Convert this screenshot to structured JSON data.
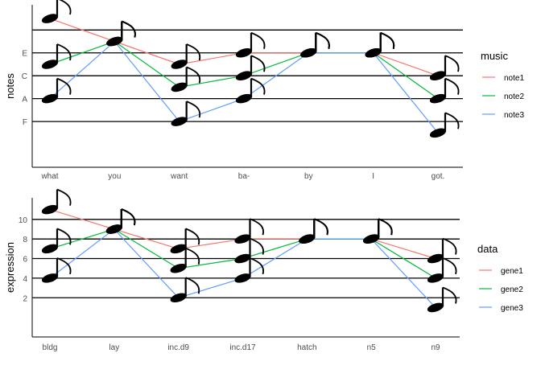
{
  "chart_data": [
    {
      "type": "line",
      "xlabel": "",
      "ylabel": "notes",
      "categories": [
        "what",
        "you",
        "want",
        "ba-",
        "by",
        "I",
        "got."
      ],
      "ylim": [
        -2,
        12.2
      ],
      "y_ticks": [
        {
          "value": 2,
          "label": "F"
        },
        {
          "value": 4,
          "label": "A"
        },
        {
          "value": 6,
          "label": "C"
        },
        {
          "value": 8,
          "label": "E"
        }
      ],
      "staff_lines": [
        2,
        4,
        6,
        8,
        10
      ],
      "legend": {
        "title": "music",
        "placement": "right"
      },
      "series": [
        {
          "name": "note1",
          "color": "#F8766D",
          "values": [
            11,
            9,
            7,
            8,
            8,
            8,
            6
          ]
        },
        {
          "name": "note2",
          "color": "#00BA38",
          "values": [
            7,
            9,
            5,
            6,
            8,
            8,
            4
          ]
        },
        {
          "name": "note3",
          "color": "#619CFF",
          "values": [
            4,
            9,
            2,
            4,
            8,
            8,
            1
          ]
        }
      ]
    },
    {
      "type": "line",
      "xlabel": "",
      "ylabel": "expression",
      "categories": [
        "bldg",
        "lay",
        "inc.d9",
        "inc.d17",
        "hatch",
        "n5",
        "n9"
      ],
      "ylim": [
        -2,
        12.2
      ],
      "y_ticks": [
        {
          "value": 2,
          "label": "2"
        },
        {
          "value": 4,
          "label": "4"
        },
        {
          "value": 6,
          "label": "6"
        },
        {
          "value": 8,
          "label": "8"
        },
        {
          "value": 10,
          "label": "10"
        }
      ],
      "staff_lines": [
        2,
        4,
        6,
        8,
        10
      ],
      "legend": {
        "title": "data",
        "placement": "right"
      },
      "series": [
        {
          "name": "gene1",
          "color": "#F8766D",
          "values": [
            11,
            9,
            7,
            8,
            8,
            8,
            6
          ]
        },
        {
          "name": "gene2",
          "color": "#00BA38",
          "values": [
            7,
            9,
            5,
            6,
            8,
            8,
            4
          ]
        },
        {
          "name": "gene3",
          "color": "#619CFF",
          "values": [
            4,
            9,
            2,
            4,
            8,
            8,
            1
          ]
        }
      ]
    }
  ]
}
